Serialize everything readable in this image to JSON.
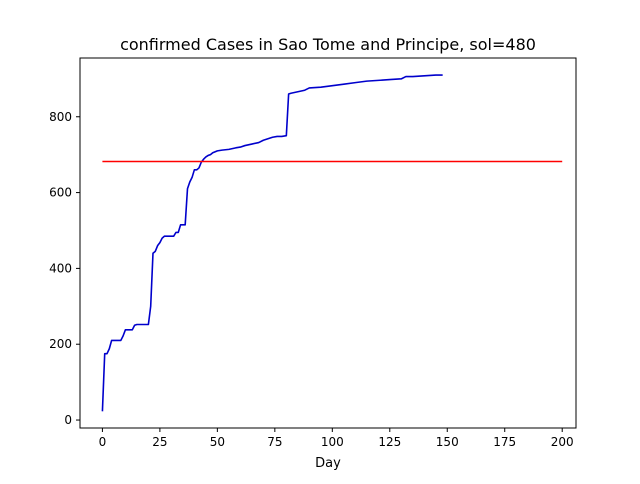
{
  "chart_data": {
    "type": "line",
    "title": "confirmed Cases in Sao Tome and Principe, sol=480",
    "xlabel": "Day",
    "ylabel": "",
    "xlim": [
      -9.75,
      206
    ],
    "ylim": [
      -21,
      955
    ],
    "xticks": [
      0,
      25,
      50,
      75,
      100,
      125,
      150,
      175,
      200
    ],
    "yticks": [
      0,
      200,
      400,
      600,
      800
    ],
    "grid": false,
    "legend": "none",
    "series": [
      {
        "color": "#0000cc",
        "x": [
          0,
          1,
          2,
          3,
          4,
          5,
          6,
          7,
          8,
          9,
          10,
          11,
          12,
          13,
          14,
          15,
          16,
          17,
          18,
          19,
          20,
          21,
          22,
          23,
          24,
          25,
          26,
          27,
          28,
          29,
          30,
          31,
          32,
          33,
          34,
          35,
          36,
          37,
          38,
          39,
          40,
          41,
          42,
          43,
          44,
          45,
          46,
          47,
          48,
          50,
          52,
          55,
          58,
          60,
          62,
          65,
          68,
          70,
          72,
          74,
          76,
          78,
          80,
          81,
          82,
          85,
          88,
          90,
          95,
          100,
          105,
          110,
          115,
          120,
          125,
          130,
          132,
          135,
          140,
          145,
          148
        ],
        "y": [
          23,
          175,
          175,
          188,
          210,
          210,
          210,
          210,
          210,
          222,
          238,
          238,
          238,
          238,
          250,
          252,
          252,
          252,
          252,
          252,
          252,
          300,
          440,
          445,
          460,
          468,
          480,
          485,
          485,
          485,
          485,
          485,
          495,
          495,
          515,
          515,
          515,
          610,
          628,
          640,
          660,
          660,
          665,
          680,
          688,
          694,
          698,
          700,
          705,
          710,
          712,
          714,
          718,
          720,
          724,
          728,
          732,
          738,
          742,
          746,
          748,
          748,
          750,
          860,
          862,
          866,
          870,
          876,
          878,
          882,
          886,
          890,
          894,
          896,
          898,
          900,
          906,
          906,
          908,
          910,
          910
        ]
      },
      {
        "color": "#ff0000",
        "x": [
          0,
          200
        ],
        "y": [
          682,
          682
        ]
      }
    ]
  }
}
